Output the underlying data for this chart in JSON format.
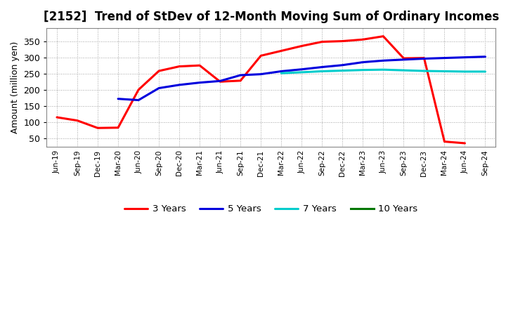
{
  "title": "[2152]  Trend of StDev of 12-Month Moving Sum of Ordinary Incomes",
  "ylabel": "Amount (million yen)",
  "xlabels": [
    "Jun-19",
    "Sep-19",
    "Dec-19",
    "Mar-20",
    "Jun-20",
    "Sep-20",
    "Dec-20",
    "Mar-21",
    "Jun-21",
    "Sep-21",
    "Dec-21",
    "Mar-22",
    "Jun-22",
    "Sep-22",
    "Dec-22",
    "Mar-23",
    "Jun-23",
    "Sep-23",
    "Dec-23",
    "Mar-24",
    "Jun-24",
    "Sep-24"
  ],
  "three_years": {
    "color": "#ff0000",
    "x": [
      0,
      1,
      2,
      3,
      4,
      5,
      6,
      7,
      8,
      9,
      10,
      11,
      12,
      13,
      14,
      15,
      16,
      17,
      18,
      19,
      20
    ],
    "y": [
      115,
      105,
      82,
      83,
      200,
      258,
      272,
      275,
      225,
      228,
      305,
      320,
      335,
      348,
      350,
      355,
      365,
      297,
      298,
      40,
      35
    ]
  },
  "five_years": {
    "color": "#0000dd",
    "x": [
      3,
      4,
      5,
      6,
      7,
      8,
      9,
      10,
      11,
      12,
      13,
      14,
      15,
      16,
      17,
      18,
      19,
      20,
      21
    ],
    "y": [
      172,
      168,
      205,
      215,
      222,
      227,
      245,
      248,
      257,
      263,
      270,
      276,
      285,
      290,
      293,
      296,
      298,
      300,
      302
    ]
  },
  "seven_years": {
    "color": "#00cccc",
    "x": [
      11,
      12,
      13,
      14,
      15,
      16,
      17,
      18,
      19,
      20,
      21
    ],
    "y": [
      251,
      254,
      257,
      259,
      261,
      262,
      260,
      258,
      257,
      256,
      256
    ]
  },
  "ten_years": {
    "color": "#007700",
    "x": [],
    "y": []
  },
  "ylim": [
    25,
    390
  ],
  "yticks": [
    50,
    100,
    150,
    200,
    250,
    300,
    350
  ],
  "background_color": "#ffffff",
  "grid_color": "#999999",
  "title_fontsize": 12,
  "linewidth": 2.2
}
